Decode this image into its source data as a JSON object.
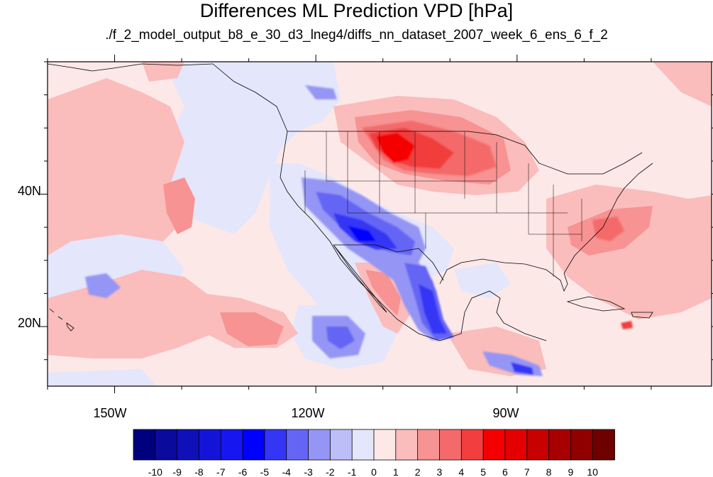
{
  "title": "Differences ML Prediction VPD [hPa]",
  "subtitle": "./f_2_model_output_b8_e_30_d3_lneg4/diffs_nn_dataset_2007_week_6_ens_6_f_2",
  "map": {
    "lon_range": [
      -160,
      -61
    ],
    "lat_range": [
      11,
      60
    ],
    "lon_ticks": [
      {
        "value": -150,
        "label": "150W"
      },
      {
        "value": -120,
        "label": "120W"
      },
      {
        "value": -90,
        "label": "90W"
      }
    ],
    "lat_ticks": [
      {
        "value": 40,
        "label": "40N"
      },
      {
        "value": 20,
        "label": "20N"
      }
    ]
  },
  "colorbar": {
    "levels": [
      "-10",
      "-9",
      "-8",
      "-7",
      "-6",
      "-5",
      "-4",
      "-3",
      "-2",
      "-1",
      "0",
      "1",
      "2",
      "3",
      "4",
      "5",
      "6",
      "7",
      "8",
      "9",
      "10"
    ],
    "colors": [
      "#00007f",
      "#0a0a9c",
      "#1010b8",
      "#1414d8",
      "#1616f0",
      "#0000ff",
      "#3535f5",
      "#6565f5",
      "#9595f5",
      "#bdbdf8",
      "#e4e6fb",
      "#fde8e8",
      "#fbbcbc",
      "#f79393",
      "#f46a6a",
      "#f23e3e",
      "#f50000",
      "#e40000",
      "#c80000",
      "#a80000",
      "#900000",
      "#6e0000"
    ]
  },
  "colors": {
    "background": "#fde8e8",
    "near_zero_negative": "#e4e6fb"
  }
}
